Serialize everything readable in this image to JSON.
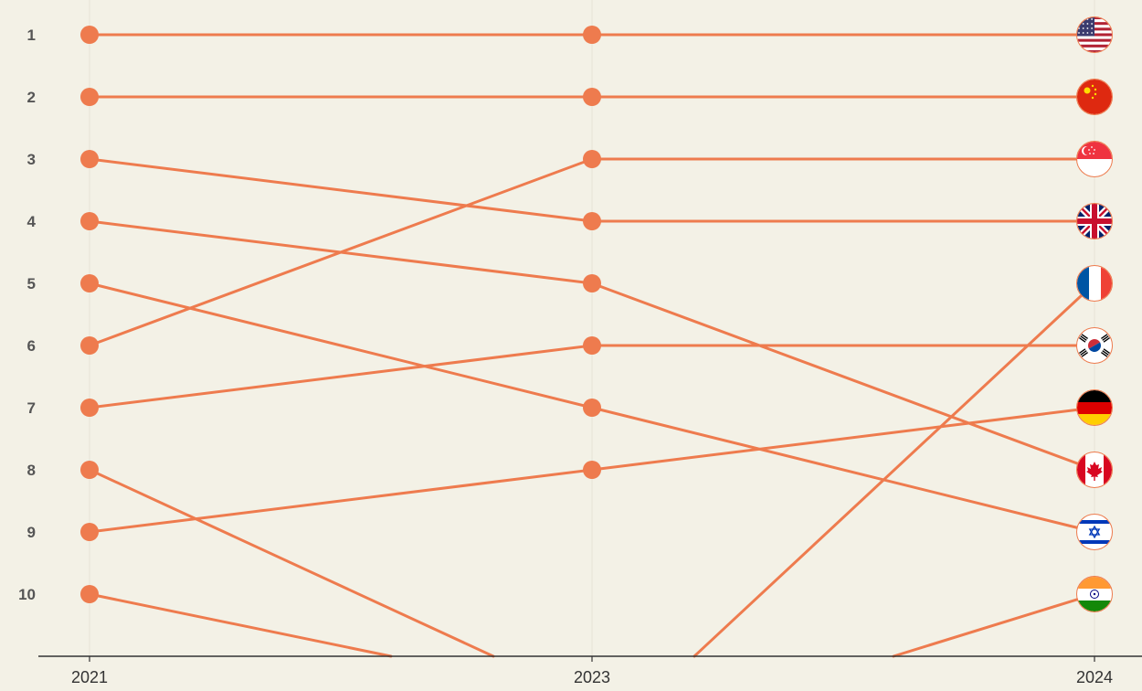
{
  "chart_data": {
    "type": "line",
    "subtype": "bump",
    "x": [
      "2021",
      "2023",
      "2024"
    ],
    "ylim": [
      1,
      10
    ],
    "y_inverted": true,
    "rank_labels": [
      "1",
      "2",
      "3",
      "4",
      "5",
      "6",
      "7",
      "8",
      "9",
      "10"
    ],
    "series": [
      {
        "flag": "usa",
        "values": [
          1,
          1,
          1
        ]
      },
      {
        "flag": "china",
        "values": [
          2,
          2,
          2
        ]
      },
      {
        "flag": "singapore",
        "values": [
          6,
          3,
          3
        ]
      },
      {
        "flag": "uk",
        "values": [
          3,
          4,
          4
        ]
      },
      {
        "flag": "france",
        "values": [
          null,
          null,
          5
        ]
      },
      {
        "flag": "south-korea",
        "values": [
          7,
          6,
          6
        ]
      },
      {
        "flag": "germany",
        "values": [
          9,
          8,
          7
        ]
      },
      {
        "flag": "canada",
        "values": [
          4,
          5,
          8
        ]
      },
      {
        "flag": "israel",
        "values": [
          5,
          7,
          9
        ]
      },
      {
        "flag": "india",
        "values": [
          null,
          null,
          10
        ]
      },
      {
        "values": [
          8,
          null,
          null
        ]
      },
      {
        "values": [
          10,
          null,
          null
        ]
      }
    ],
    "grid": false,
    "legend": "none"
  },
  "colors": {
    "background": "#f3f1e6",
    "line": "#ee7b4e",
    "axis": "#333333"
  }
}
